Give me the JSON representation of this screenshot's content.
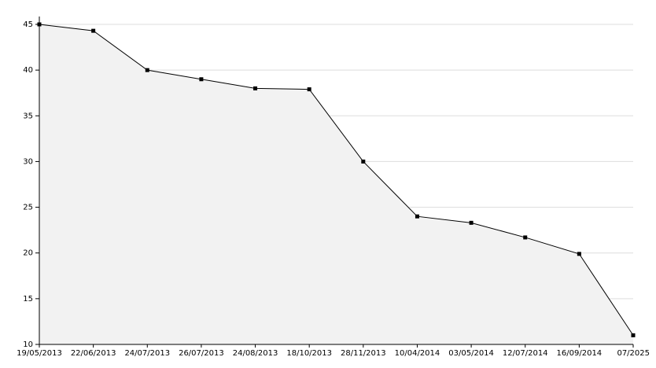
{
  "chart_data": {
    "type": "area",
    "categories": [
      "19/05/2013",
      "22/06/2013",
      "24/07/2013",
      "26/07/2013",
      "24/08/2013",
      "18/10/2013",
      "28/11/2013",
      "10/04/2014",
      "03/05/2014",
      "12/07/2014",
      "16/09/2014",
      "07/2025"
    ],
    "values": [
      45,
      44.3,
      40,
      39,
      38,
      37.9,
      30,
      24,
      23.3,
      21.7,
      19.9,
      11
    ],
    "color": "#000000",
    "fill": "#f2f2f2",
    "ylim": [
      10,
      45
    ],
    "yticks": [
      10,
      15,
      20,
      25,
      30,
      35,
      40,
      45
    ],
    "grid": true
  }
}
